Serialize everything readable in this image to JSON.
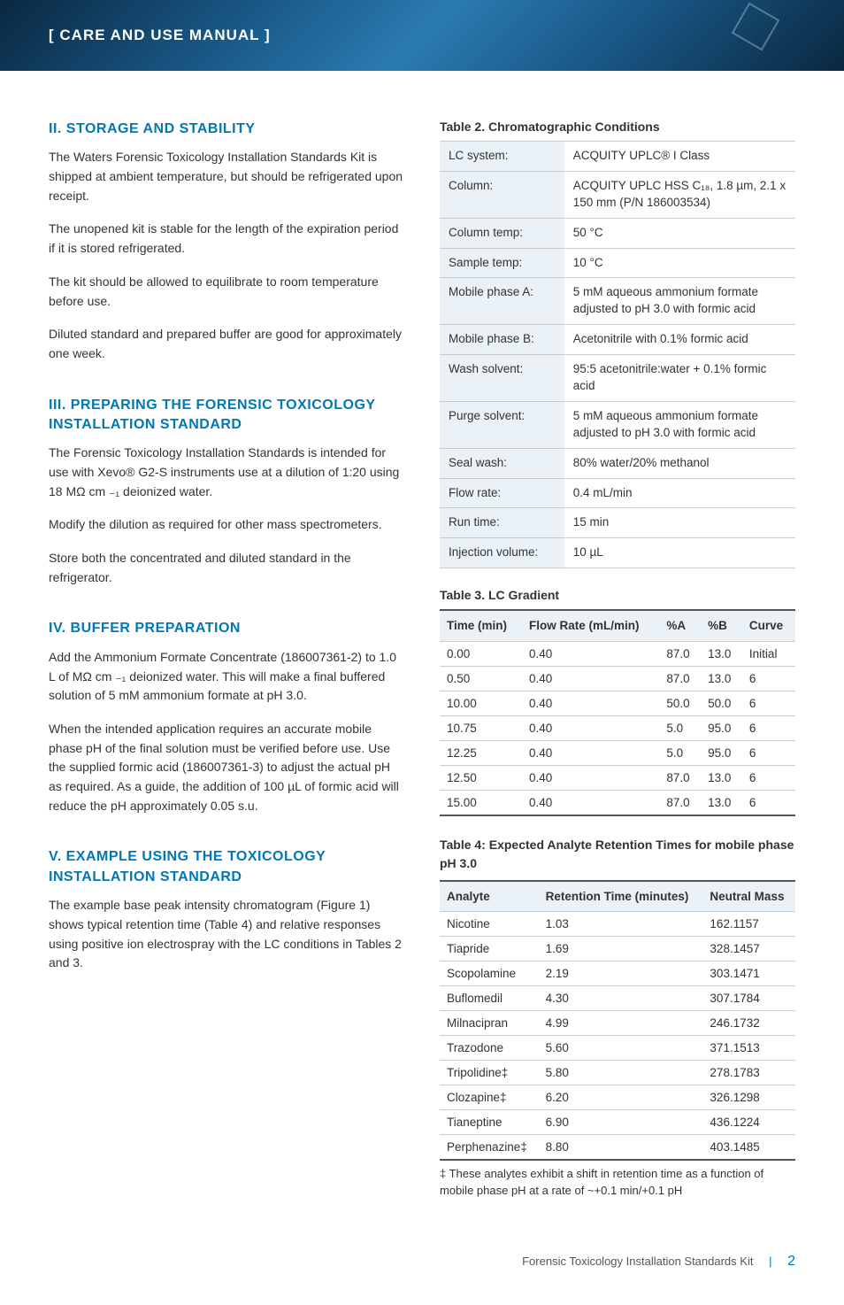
{
  "banner": {
    "title": "[ CARE AND USE MANUAL ]"
  },
  "left": {
    "s2": {
      "heading": "II. STORAGE AND STABILITY",
      "p1": "The Waters Forensic Toxicology Installation Standards Kit is shipped at ambient temperature, but should be refrigerated upon receipt.",
      "p2": "The unopened kit is stable for the length of the expiration period if it is stored refrigerated.",
      "p3": "The kit should be allowed to equilibrate to room temperature before use.",
      "p4": "Diluted standard and prepared buffer are good for approximately one week."
    },
    "s3": {
      "heading": "III. PREPARING THE FORENSIC TOXICOLOGY INSTALLATION STANDARD",
      "p1": "The Forensic Toxicology Installation Standards is intended for use with Xevo® G2-S instruments use at a dilution of 1:20 using 18 MΩ cm ₋₁ deionized water.",
      "p2": "Modify the dilution as required for other mass spectrometers.",
      "p3": "Store both the concentrated and diluted standard in the refrigerator."
    },
    "s4": {
      "heading": "IV. BUFFER PREPARATION",
      "p1": "Add the Ammonium Formate Concentrate (186007361-2) to 1.0 L of MΩ cm ₋₁ deionized water. This will make a final buffered solution of 5 mM ammonium formate at pH 3.0.",
      "p2": "When the intended application requires an accurate mobile phase pH of the final solution must be verified before use. Use the supplied formic acid (186007361-3) to adjust the actual pH as required. As a guide, the addition of 100 µL of formic acid will reduce the pH approximately 0.05 s.u."
    },
    "s5": {
      "heading": "V. EXAMPLE USING THE TOXICOLOGY INSTALLATION STANDARD",
      "p1": "The example base peak intensity chromatogram (Figure 1) shows typical retention time (Table 4) and relative responses using positive ion electrospray with the LC conditions in Tables 2 and 3."
    }
  },
  "right": {
    "t2": {
      "title": "Table 2. Chromatographic Conditions",
      "rows": [
        {
          "k": "LC system:",
          "v": "ACQUITY UPLC® I Class"
        },
        {
          "k": "Column:",
          "v": "ACQUITY UPLC HSS C₁₈, 1.8 µm, 2.1 x 150 mm (P/N 186003534)"
        },
        {
          "k": "Column temp:",
          "v": "50 °C"
        },
        {
          "k": "Sample temp:",
          "v": "10 °C"
        },
        {
          "k": "Mobile phase A:",
          "v": "5 mM aqueous ammonium formate adjusted to pH 3.0 with formic acid"
        },
        {
          "k": "Mobile phase B:",
          "v": "Acetonitrile with 0.1% formic acid"
        },
        {
          "k": "Wash solvent:",
          "v": "95:5 acetonitrile:water + 0.1% formic acid"
        },
        {
          "k": "Purge solvent:",
          "v": "5 mM aqueous ammonium formate adjusted to pH 3.0 with formic acid"
        },
        {
          "k": "Seal wash:",
          "v": "80% water/20% methanol"
        },
        {
          "k": "Flow rate:",
          "v": "0.4 mL/min"
        },
        {
          "k": "Run time:",
          "v": "15 min"
        },
        {
          "k": "Injection volume:",
          "v": "10 µL"
        }
      ]
    },
    "t3": {
      "title": "Table 3. LC Gradient",
      "headers": [
        "Time (min)",
        "Flow Rate (mL/min)",
        "%A",
        "%B",
        "Curve"
      ],
      "rows": [
        [
          "0.00",
          "0.40",
          "87.0",
          "13.0",
          "Initial"
        ],
        [
          "0.50",
          "0.40",
          "87.0",
          "13.0",
          "6"
        ],
        [
          "10.00",
          "0.40",
          "50.0",
          "50.0",
          "6"
        ],
        [
          "10.75",
          "0.40",
          "5.0",
          "95.0",
          "6"
        ],
        [
          "12.25",
          "0.40",
          "5.0",
          "95.0",
          "6"
        ],
        [
          "12.50",
          "0.40",
          "87.0",
          "13.0",
          "6"
        ],
        [
          "15.00",
          "0.40",
          "87.0",
          "13.0",
          "6"
        ]
      ]
    },
    "t4": {
      "title": "Table 4: Expected Analyte Retention Times for mobile phase pH 3.0",
      "headers": [
        "Analyte",
        "Retention Time (minutes)",
        "Neutral Mass"
      ],
      "rows": [
        [
          "Nicotine",
          "1.03",
          "162.1157"
        ],
        [
          "Tiapride",
          "1.69",
          "328.1457"
        ],
        [
          "Scopolamine",
          "2.19",
          "303.1471"
        ],
        [
          "Buflomedil",
          "4.30",
          "307.1784"
        ],
        [
          "Milnacipran",
          "4.99",
          "246.1732"
        ],
        [
          "Trazodone",
          "5.60",
          "371.1513"
        ],
        [
          "Tripolidine‡",
          "5.80",
          "278.1783"
        ],
        [
          "Clozapine‡",
          "6.20",
          "326.1298"
        ],
        [
          "Tianeptine",
          "6.90",
          "436.1224"
        ],
        [
          "Perphenazine‡",
          "8.80",
          "403.1485"
        ]
      ],
      "footnote": "‡ These analytes exhibit a shift in retention time as a function of mobile phase pH at a rate of ~+0.1 min/+0.1 pH"
    }
  },
  "footer": {
    "doc": "Forensic Toxicology Installation Standards Kit",
    "page": "2"
  }
}
